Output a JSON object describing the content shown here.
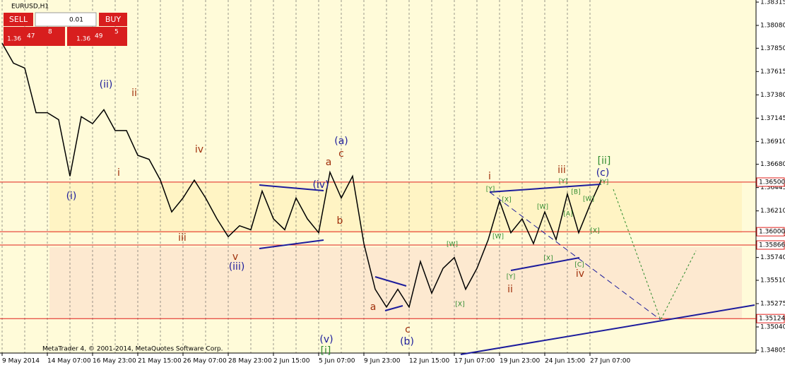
{
  "window_title": "EURUSD,H1",
  "trade_panel": {
    "sell": "SELL",
    "lot": "0.01",
    "buy": "BUY",
    "bid": {
      "prefix": "1.36",
      "big": "47",
      "small": "8"
    },
    "ask": {
      "prefix": "1.36",
      "big": "49",
      "small": "5"
    }
  },
  "copyright": "MetaTrader 4, © 2001-2014, MetaQuotes Software Corp.",
  "chart_data": {
    "type": "line",
    "color": "#000000",
    "categories": [
      "9 May 2014",
      null,
      null,
      null,
      "14 May 07:00",
      null,
      null,
      null,
      "16 May 23:00",
      null,
      null,
      null,
      "21 May 15:00",
      null,
      null,
      null,
      "26 May 07:00",
      null,
      null,
      null,
      "28 May 23:00",
      null,
      null,
      null,
      "2 Jun 15:00",
      null,
      null,
      null,
      "5 Jun 07:00",
      null,
      null,
      null,
      "9 Jun 23:00",
      null,
      null,
      null,
      "12 Jun 15:00",
      null,
      null,
      null,
      "17 Jun 07:00",
      null,
      null,
      null,
      "19 Jun 23:00",
      null,
      null,
      null,
      "24 Jun 15:00",
      null,
      null,
      null,
      "27 Jun 07:00",
      null
    ],
    "values": [
      1.379,
      1.377,
      1.3765,
      1.372,
      1.372,
      1.3713,
      1.3656,
      1.3716,
      1.3709,
      1.3723,
      1.3702,
      1.3702,
      1.3677,
      1.3673,
      1.3652,
      1.362,
      1.3634,
      1.3652,
      1.3634,
      1.3613,
      1.3595,
      1.3606,
      1.3602,
      1.3641,
      1.3613,
      1.3602,
      1.3634,
      1.3613,
      1.3599,
      1.366,
      1.3634,
      1.3656,
      1.3588,
      1.3542,
      1.3524,
      1.3542,
      1.3524,
      1.357,
      1.3538,
      1.3563,
      1.3574,
      1.3542,
      1.3563,
      1.3592,
      1.3631,
      1.3599,
      1.3613,
      1.3588,
      1.362,
      1.3592,
      1.3638,
      1.3599,
      1.3627,
      1.3652
    ],
    "ylim": [
      1.34805,
      1.38315
    ],
    "yticks": [
      1.38315,
      {
        "value": 1.3808,
        "label": "1.38080"
      },
      {
        "value": 1.3785,
        "label": "1.37850"
      },
      1.37615,
      {
        "value": 1.3738,
        "label": "1.37380"
      },
      1.37145,
      {
        "value": 1.3691,
        "label": "1.36910"
      },
      {
        "value": 1.3668,
        "label": "1.36680"
      },
      1.36445,
      {
        "value": 1.3621,
        "label": "1.36210"
      },
      1.35975,
      {
        "value": 1.3574,
        "label": "1.35740"
      },
      {
        "value": 1.3551,
        "label": "1.35510"
      },
      1.35275,
      {
        "value": 1.3504,
        "label": "1.35040"
      },
      1.34805
    ],
    "levels": [
      {
        "value": 1.365,
        "label": "1.36500"
      },
      {
        "value": 1.36,
        "label": "1.36000"
      },
      {
        "value": 1.35866,
        "label": "1.35866"
      },
      {
        "value": 1.35124,
        "label": "1.35124"
      }
    ],
    "annotations": [
      "(i)",
      "(ii)",
      "ii",
      "i",
      "iii",
      "iv",
      "v",
      "(iii)",
      "(iv)",
      "a",
      "c",
      "(a)",
      "b",
      "(v)",
      "[i]",
      "a",
      "c",
      "(b)",
      "i",
      "ii",
      "iii",
      "iv",
      "(c)",
      "[ii]",
      "[W]",
      "[X]",
      "[Y]",
      "[X]",
      "[W]",
      "[Y]",
      "[W]",
      "[X]",
      "[Y]",
      "[B]",
      "[A]",
      "[C]",
      "[X]",
      "[W]",
      "[Y]"
    ]
  }
}
